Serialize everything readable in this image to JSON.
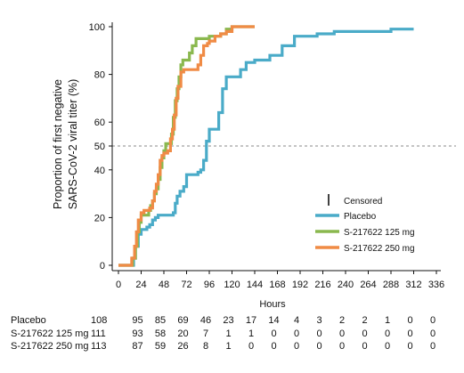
{
  "chart_data": {
    "type": "line",
    "title": "",
    "xlabel": "Hours",
    "ylabel_line1": "Proportion of  first negative",
    "ylabel_line2": "SARS-CoV-2 viral titer (%)",
    "xlim": [
      0,
      336
    ],
    "ylim": [
      0,
      100
    ],
    "x_ticks": [
      0,
      24,
      48,
      72,
      96,
      120,
      144,
      168,
      192,
      216,
      240,
      264,
      288,
      312,
      336
    ],
    "y_ticks": [
      0,
      20,
      40,
      50,
      60,
      80,
      100
    ],
    "reference_line": {
      "y": 50,
      "style": "dashed"
    },
    "legend": {
      "placement": "lower-right",
      "censored_label": "Censored",
      "entries": [
        {
          "name": "Placebo",
          "color": "#4aabc8"
        },
        {
          "name": "S-217622 125 mg",
          "color": "#8ab84e"
        },
        {
          "name": "S-217622 250 mg",
          "color": "#f08b45"
        }
      ]
    },
    "series": [
      {
        "name": "Placebo",
        "color": "#4aabc8",
        "steps": [
          [
            0,
            0
          ],
          [
            12,
            0
          ],
          [
            16,
            3
          ],
          [
            18,
            8
          ],
          [
            21,
            13
          ],
          [
            24,
            15
          ],
          [
            27,
            15
          ],
          [
            30,
            16
          ],
          [
            33,
            17
          ],
          [
            36,
            19
          ],
          [
            39,
            20
          ],
          [
            42,
            21
          ],
          [
            48,
            21
          ],
          [
            54,
            21
          ],
          [
            58,
            22
          ],
          [
            60,
            26
          ],
          [
            62,
            29
          ],
          [
            65,
            31
          ],
          [
            69,
            33
          ],
          [
            72,
            38
          ],
          [
            78,
            38
          ],
          [
            84,
            39
          ],
          [
            87,
            40
          ],
          [
            90,
            44
          ],
          [
            93,
            52
          ],
          [
            96,
            57
          ],
          [
            102,
            57
          ],
          [
            106,
            64
          ],
          [
            110,
            74
          ],
          [
            114,
            79
          ],
          [
            120,
            79
          ],
          [
            126,
            79
          ],
          [
            129,
            82
          ],
          [
            135,
            85
          ],
          [
            144,
            86
          ],
          [
            150,
            86
          ],
          [
            160,
            88
          ],
          [
            170,
            88
          ],
          [
            173,
            92
          ],
          [
            180,
            92
          ],
          [
            186,
            96
          ],
          [
            198,
            96
          ],
          [
            210,
            97
          ],
          [
            228,
            98
          ],
          [
            276,
            98
          ],
          [
            288,
            99
          ],
          [
            312,
            99
          ]
        ]
      },
      {
        "name": "S-217622 125 mg",
        "color": "#8ab84e",
        "steps": [
          [
            0,
            0
          ],
          [
            12,
            0
          ],
          [
            15,
            3
          ],
          [
            18,
            8
          ],
          [
            20,
            14
          ],
          [
            22,
            18
          ],
          [
            24,
            21
          ],
          [
            30,
            21
          ],
          [
            32,
            23
          ],
          [
            34,
            25
          ],
          [
            36,
            27
          ],
          [
            38,
            30
          ],
          [
            40,
            32
          ],
          [
            42,
            36
          ],
          [
            44,
            41
          ],
          [
            46,
            45
          ],
          [
            48,
            48
          ],
          [
            50,
            51
          ],
          [
            54,
            51
          ],
          [
            56,
            55
          ],
          [
            58,
            62
          ],
          [
            60,
            69
          ],
          [
            62,
            74
          ],
          [
            64,
            79
          ],
          [
            66,
            84
          ],
          [
            68,
            86
          ],
          [
            72,
            86
          ],
          [
            75,
            89
          ],
          [
            78,
            92
          ],
          [
            82,
            95
          ],
          [
            90,
            95
          ],
          [
            96,
            96
          ],
          [
            108,
            97
          ],
          [
            114,
            99
          ],
          [
            120,
            100
          ],
          [
            144,
            100
          ]
        ]
      },
      {
        "name": "S-217622 250 mg",
        "color": "#f08b45",
        "steps": [
          [
            0,
            0
          ],
          [
            12,
            0
          ],
          [
            14,
            3
          ],
          [
            17,
            8
          ],
          [
            19,
            14
          ],
          [
            21,
            19
          ],
          [
            24,
            22
          ],
          [
            27,
            23
          ],
          [
            30,
            23
          ],
          [
            33,
            24
          ],
          [
            36,
            27
          ],
          [
            38,
            31
          ],
          [
            40,
            34
          ],
          [
            42,
            38
          ],
          [
            44,
            44
          ],
          [
            46,
            46
          ],
          [
            48,
            47
          ],
          [
            52,
            48
          ],
          [
            55,
            53
          ],
          [
            57,
            57
          ],
          [
            59,
            63
          ],
          [
            61,
            70
          ],
          [
            63,
            75
          ],
          [
            66,
            81
          ],
          [
            69,
            82
          ],
          [
            72,
            82
          ],
          [
            78,
            82
          ],
          [
            84,
            84
          ],
          [
            87,
            88
          ],
          [
            90,
            92
          ],
          [
            94,
            93
          ],
          [
            96,
            94
          ],
          [
            102,
            96
          ],
          [
            108,
            97
          ],
          [
            114,
            98
          ],
          [
            120,
            100
          ],
          [
            144,
            100
          ]
        ]
      }
    ]
  },
  "risk_table": {
    "rows": [
      {
        "label": "Placebo",
        "values": [
          "108",
          "95",
          "85",
          "69",
          "46",
          "23",
          "17",
          "14",
          "4",
          "3",
          "2",
          "2",
          "1",
          "0",
          "0"
        ]
      },
      {
        "label": "S-217622 125 mg",
        "values": [
          "111",
          "93",
          "58",
          "20",
          "7",
          "1",
          "1",
          "0",
          "0",
          "0",
          "0",
          "0",
          "0",
          "0",
          "0"
        ]
      },
      {
        "label": "S-217622 250 mg",
        "values": [
          "113",
          "87",
          "59",
          "26",
          "8",
          "1",
          "0",
          "0",
          "0",
          "0",
          "0",
          "0",
          "0",
          "0",
          "0"
        ]
      }
    ]
  }
}
